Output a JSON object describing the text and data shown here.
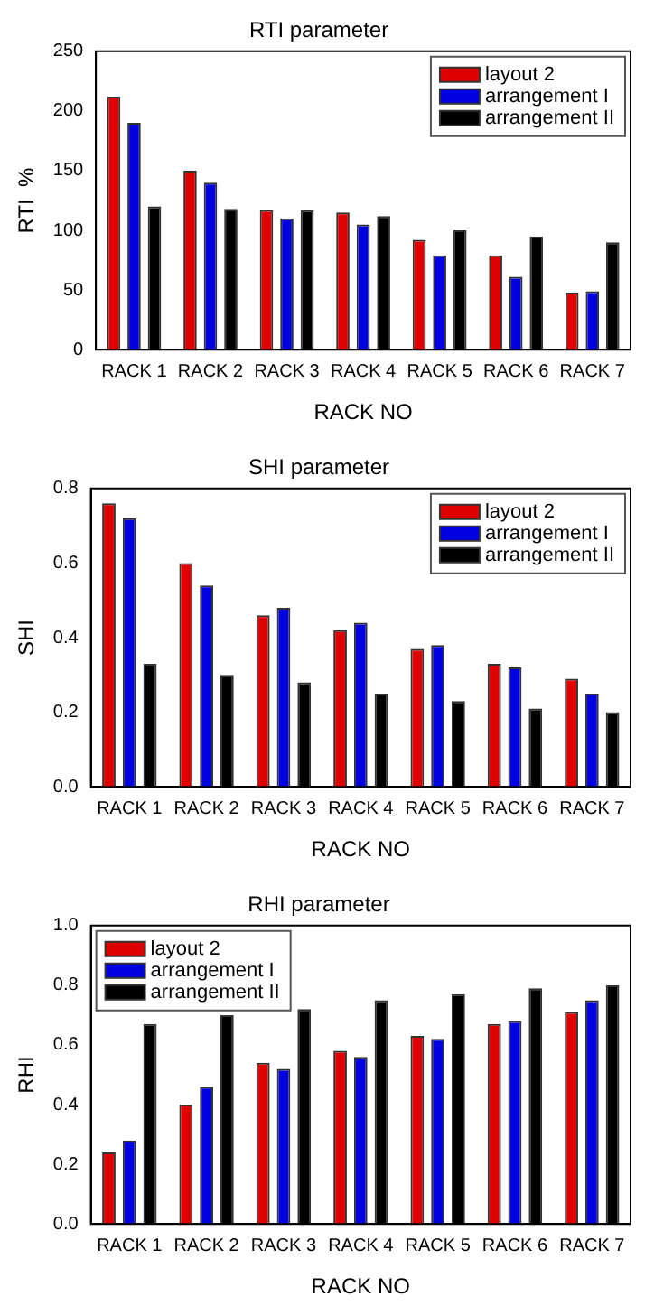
{
  "chart_data": [
    {
      "type": "bar",
      "title": "RTI parameter",
      "xlabel": "RACK NO",
      "ylabel": "RTI  %",
      "categories": [
        "RACK 1",
        "RACK 2",
        "RACK 3",
        "RACK 4",
        "RACK 5",
        "RACK 6",
        "RACK 7"
      ],
      "series": [
        {
          "name": "layout 2",
          "color": "#e00000",
          "values": [
            212,
            150,
            117,
            115,
            92,
            79,
            48
          ]
        },
        {
          "name": "arrangement I",
          "color": "#0000e0",
          "values": [
            190,
            140,
            110,
            105,
            79,
            61,
            49
          ]
        },
        {
          "name": "arrangement II",
          "color": "#000000",
          "values": [
            120,
            118,
            117,
            112,
            100,
            95,
            90
          ]
        }
      ],
      "ylim": [
        0,
        250
      ],
      "yticks": [
        0,
        50,
        100,
        150,
        200,
        250
      ],
      "grid": false,
      "legend": "top right"
    },
    {
      "type": "bar",
      "title": "SHI parameter",
      "xlabel": "RACK NO",
      "ylabel": "SHI",
      "categories": [
        "RACK 1",
        "RACK 2",
        "RACK 3",
        "RACK 4",
        "RACK 5",
        "RACK 6",
        "RACK 7"
      ],
      "series": [
        {
          "name": "layout 2",
          "color": "#e00000",
          "values": [
            0.76,
            0.6,
            0.46,
            0.42,
            0.37,
            0.33,
            0.29
          ]
        },
        {
          "name": "arrangement I",
          "color": "#0000e0",
          "values": [
            0.72,
            0.54,
            0.48,
            0.44,
            0.38,
            0.32,
            0.25
          ]
        },
        {
          "name": "arrangement II",
          "color": "#000000",
          "values": [
            0.33,
            0.3,
            0.28,
            0.25,
            0.23,
            0.21,
            0.2
          ]
        }
      ],
      "ylim": [
        0,
        0.8
      ],
      "yticks": [
        {
          "value": 0,
          "label": "0.0"
        },
        {
          "value": 0.2,
          "label": "0.2"
        },
        {
          "value": 0.4,
          "label": "0.4"
        },
        {
          "value": 0.6,
          "label": "0.6"
        },
        {
          "value": 0.8,
          "label": "0.8"
        }
      ],
      "grid": false,
      "legend": "top right"
    },
    {
      "type": "bar",
      "title": "RHI parameter",
      "xlabel": "RACK NO",
      "ylabel": "RHI",
      "categories": [
        "RACK 1",
        "RACK 2",
        "RACK 3",
        "RACK 4",
        "RACK 5",
        "RACK 6",
        "RACK 7"
      ],
      "series": [
        {
          "name": "layout 2",
          "color": "#e00000",
          "values": [
            0.24,
            0.4,
            0.54,
            0.58,
            0.63,
            0.67,
            0.71
          ]
        },
        {
          "name": "arrangement I",
          "color": "#0000e0",
          "values": [
            0.28,
            0.46,
            0.52,
            0.56,
            0.62,
            0.68,
            0.75
          ]
        },
        {
          "name": "arrangement II",
          "color": "#000000",
          "values": [
            0.67,
            0.7,
            0.72,
            0.75,
            0.77,
            0.79,
            0.8
          ]
        }
      ],
      "ylim": [
        0,
        1
      ],
      "yticks": [
        {
          "value": 0,
          "label": "0.0"
        },
        {
          "value": 0.2,
          "label": "0.2"
        },
        {
          "value": 0.4,
          "label": "0.4"
        },
        {
          "value": 0.6,
          "label": "0.6"
        },
        {
          "value": 0.8,
          "label": "0.8"
        },
        {
          "value": 1,
          "label": "1.0"
        }
      ],
      "grid": false,
      "legend": "top left"
    }
  ]
}
